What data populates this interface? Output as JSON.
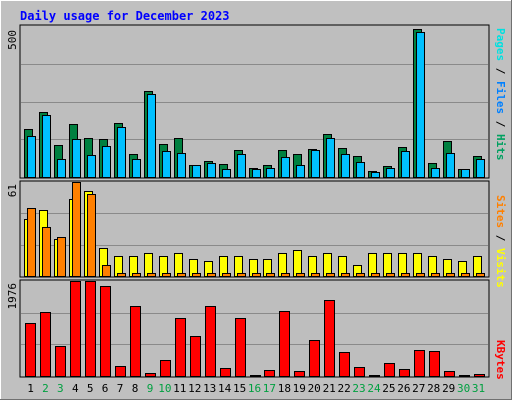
{
  "title": "Daily usage for December 2023",
  "colors": {
    "background": "#c0c0c0",
    "plot_bg": "#bebebe",
    "grid": "#8a8a8a",
    "title": "#0000ff",
    "hits": "#008040",
    "files": "#00c0ff",
    "pages": "#00e0e0",
    "sites": "#ff8000",
    "visits": "#ffff00",
    "kbytes": "#ff0000",
    "weekday_label": "#000000",
    "weekend_label": "#00a040"
  },
  "chart_data": [
    {
      "type": "bar",
      "name": "hits-files-pages",
      "categories": [
        "1",
        "2",
        "3",
        "4",
        "5",
        "6",
        "7",
        "8",
        "9",
        "10",
        "11",
        "12",
        "13",
        "14",
        "15",
        "16",
        "17",
        "18",
        "19",
        "20",
        "21",
        "22",
        "23",
        "24",
        "25",
        "26",
        "27",
        "28",
        "29",
        "30",
        "31"
      ],
      "ylim": [
        0,
        500
      ],
      "tick_label": "500",
      "right_label": {
        "pages": "Pages",
        "sep1": " / ",
        "files": "Files",
        "sep2": " / ",
        "hits": "Hits"
      },
      "series": [
        {
          "name": "Hits",
          "color": "#008040",
          "values": [
            160,
            215,
            105,
            175,
            130,
            125,
            180,
            75,
            285,
            110,
            128,
            40,
            52,
            42,
            90,
            30,
            40,
            90,
            75,
            93,
            142,
            95,
            70,
            20,
            38,
            98,
            490,
            45,
            118,
            28,
            70
          ]
        },
        {
          "name": "Files",
          "color": "#00c0ff",
          "values": [
            135,
            205,
            60,
            125,
            72,
            102,
            165,
            58,
            275,
            85,
            80,
            40,
            45,
            28,
            75,
            25,
            30,
            65,
            40,
            90,
            130,
            75,
            50,
            15,
            30,
            85,
            480,
            30,
            80,
            25,
            60
          ]
        },
        {
          "name": "Pages",
          "color": "#00e0e0",
          "values": [
            0,
            0,
            0,
            0,
            0,
            0,
            0,
            0,
            0,
            0,
            0,
            0,
            0,
            0,
            0,
            0,
            0,
            0,
            0,
            0,
            0,
            0,
            0,
            0,
            0,
            0,
            0,
            0,
            0,
            0,
            0
          ]
        }
      ]
    },
    {
      "type": "bar",
      "name": "sites-visits",
      "categories": [
        "1",
        "2",
        "3",
        "4",
        "5",
        "6",
        "7",
        "8",
        "9",
        "10",
        "11",
        "12",
        "13",
        "14",
        "15",
        "16",
        "17",
        "18",
        "19",
        "20",
        "21",
        "22",
        "23",
        "24",
        "25",
        "26",
        "27",
        "28",
        "29",
        "30",
        "31"
      ],
      "ylim": [
        0,
        61
      ],
      "tick_label": "61",
      "right_label": {
        "sites": "Sites",
        "sep": " / ",
        "visits": "Visits"
      },
      "series": [
        {
          "name": "Visits",
          "color": "#ffff00",
          "values": [
            37,
            43,
            24,
            50,
            55,
            18,
            13,
            13,
            15,
            13,
            15,
            11,
            10,
            13,
            13,
            11,
            11,
            15,
            17,
            13,
            15,
            13,
            7,
            15,
            15,
            15,
            15,
            13,
            11,
            10,
            13
          ]
        },
        {
          "name": "Sites",
          "color": "#ff8000",
          "values": [
            44,
            32,
            25,
            61,
            53,
            7,
            2,
            2,
            2,
            2,
            2,
            2,
            2,
            2,
            2,
            2,
            2,
            2,
            2,
            2,
            2,
            2,
            2,
            2,
            2,
            2,
            2,
            2,
            2,
            2,
            2
          ]
        }
      ]
    },
    {
      "type": "bar",
      "name": "kbytes",
      "categories": [
        "1",
        "2",
        "3",
        "4",
        "5",
        "6",
        "7",
        "8",
        "9",
        "10",
        "11",
        "12",
        "13",
        "14",
        "15",
        "16",
        "17",
        "18",
        "19",
        "20",
        "21",
        "22",
        "23",
        "24",
        "25",
        "26",
        "27",
        "28",
        "29",
        "30",
        "31"
      ],
      "ylim": [
        0,
        1976
      ],
      "tick_label": "1976",
      "right_label": {
        "kbytes": "KBytes"
      },
      "series": [
        {
          "name": "KBytes",
          "color": "#ff0000",
          "values": [
            1100,
            1330,
            620,
            1976,
            1976,
            1870,
            200,
            1460,
            55,
            340,
            1200,
            840,
            1460,
            170,
            1200,
            20,
            120,
            1350,
            110,
            740,
            1590,
            500,
            180,
            20,
            260,
            150,
            550,
            510,
            100,
            20,
            40
          ]
        }
      ]
    }
  ],
  "x_axis": {
    "labels": [
      "1",
      "2",
      "3",
      "4",
      "5",
      "6",
      "7",
      "8",
      "9",
      "10",
      "11",
      "12",
      "13",
      "14",
      "15",
      "16",
      "17",
      "18",
      "19",
      "20",
      "21",
      "22",
      "23",
      "24",
      "25",
      "26",
      "27",
      "28",
      "29",
      "30",
      "31"
    ],
    "weekend": [
      false,
      true,
      true,
      false,
      false,
      false,
      false,
      false,
      true,
      true,
      false,
      false,
      false,
      false,
      false,
      true,
      true,
      false,
      false,
      false,
      false,
      false,
      true,
      true,
      false,
      false,
      false,
      false,
      false,
      true,
      true
    ]
  }
}
